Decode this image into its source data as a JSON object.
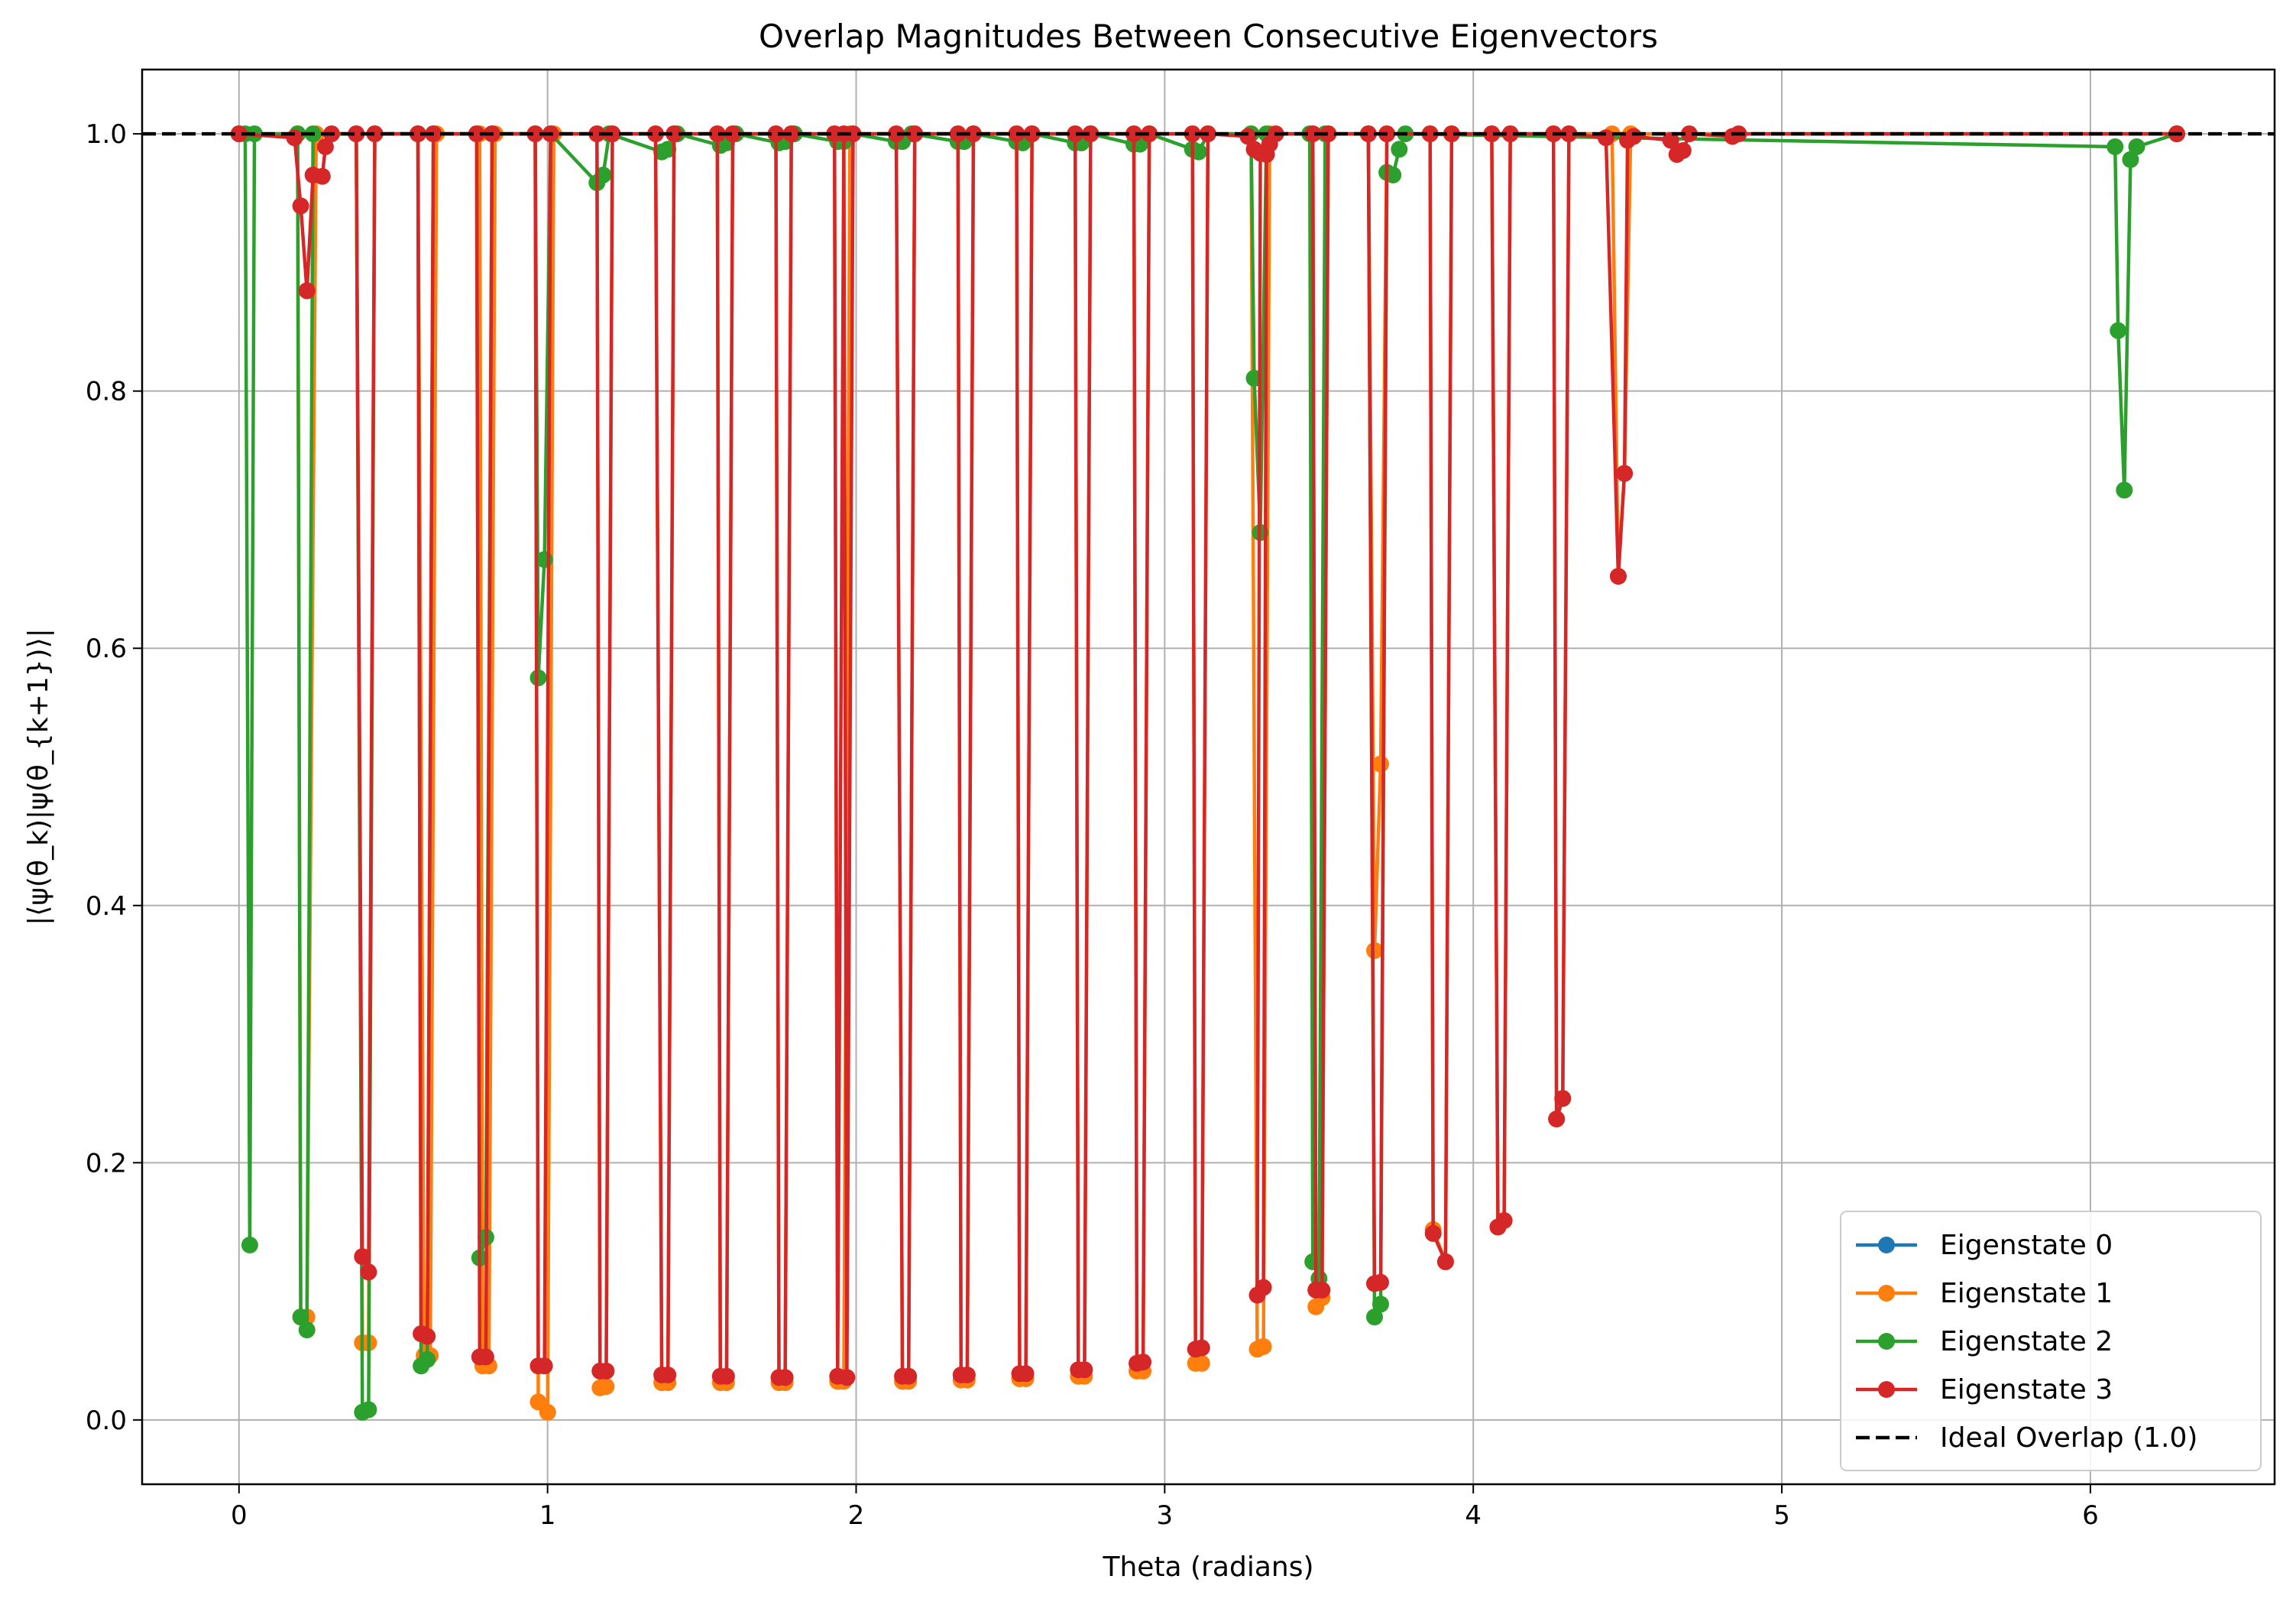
{
  "chart_data": {
    "type": "line",
    "title": "Overlap Magnitudes Between Consecutive Eigenvectors",
    "xlabel": "Theta (radians)",
    "ylabel": "|⟨ψ(θ_k)|ψ(θ_{k+1})⟩|",
    "xlim": [
      -0.314,
      6.597
    ],
    "ylim": [
      -0.05,
      1.05
    ],
    "xticks": [
      0,
      1,
      2,
      3,
      4,
      5,
      6
    ],
    "yticks": [
      0.0,
      0.2,
      0.4,
      0.6,
      0.8,
      1.0
    ],
    "ytick_labels": [
      "0.0",
      "0.2",
      "0.4",
      "0.6",
      "0.8",
      "1.0"
    ],
    "grid": true,
    "legend_position": "lower right",
    "colors": {
      "Eigenstate 0": "#1f77b4",
      "Eigenstate 1": "#ff7f0e",
      "Eigenstate 2": "#2ca02c",
      "Eigenstate 3": "#d62728",
      "Ideal Overlap (1.0)": "#000000"
    },
    "reference_line": {
      "name": "Ideal Overlap (1.0)",
      "y": 1.0,
      "style": "dashed"
    },
    "series": [
      {
        "name": "Eigenstate 0",
        "points": [
          [
            0,
            1
          ],
          [
            6.28,
            1
          ]
        ]
      },
      {
        "name": "Eigenstate 1",
        "points": [
          [
            0,
            1
          ],
          [
            0.19,
            1
          ],
          [
            0.2,
            0.08
          ],
          [
            0.22,
            0.08
          ],
          [
            0.25,
            1
          ],
          [
            0.38,
            1
          ],
          [
            0.4,
            0.06
          ],
          [
            0.42,
            0.06
          ],
          [
            0.44,
            1
          ],
          [
            0.58,
            1
          ],
          [
            0.6,
            0.05
          ],
          [
            0.62,
            0.05
          ],
          [
            0.64,
            1
          ],
          [
            0.78,
            1
          ],
          [
            0.79,
            0.042
          ],
          [
            0.81,
            0.042
          ],
          [
            0.83,
            1
          ],
          [
            0.96,
            1
          ],
          [
            0.97,
            0.014
          ],
          [
            1.0,
            0.006
          ],
          [
            1.02,
            1
          ],
          [
            1.16,
            1
          ],
          [
            1.17,
            0.025
          ],
          [
            1.19,
            0.026
          ],
          [
            1.21,
            1
          ],
          [
            1.35,
            1
          ],
          [
            1.37,
            0.029
          ],
          [
            1.39,
            0.029
          ],
          [
            1.41,
            1
          ],
          [
            1.55,
            1
          ],
          [
            1.56,
            0.029
          ],
          [
            1.58,
            0.029
          ],
          [
            1.6,
            1
          ],
          [
            1.74,
            1
          ],
          [
            1.75,
            0.029
          ],
          [
            1.77,
            0.029
          ],
          [
            1.79,
            1
          ],
          [
            1.93,
            1
          ],
          [
            1.94,
            0.03
          ],
          [
            1.96,
            0.03
          ],
          [
            1.98,
            1
          ],
          [
            2.13,
            1
          ],
          [
            2.15,
            0.03
          ],
          [
            2.17,
            0.03
          ],
          [
            2.19,
            1
          ],
          [
            2.33,
            1
          ],
          [
            2.34,
            0.031
          ],
          [
            2.36,
            0.031
          ],
          [
            2.38,
            1
          ],
          [
            2.52,
            1
          ],
          [
            2.53,
            0.032
          ],
          [
            2.55,
            0.032
          ],
          [
            2.57,
            1
          ],
          [
            2.71,
            1
          ],
          [
            2.72,
            0.034
          ],
          [
            2.74,
            0.034
          ],
          [
            2.76,
            1
          ],
          [
            2.9,
            1
          ],
          [
            2.91,
            0.038
          ],
          [
            2.93,
            0.038
          ],
          [
            2.95,
            1
          ],
          [
            3.09,
            1
          ],
          [
            3.1,
            0.044
          ],
          [
            3.12,
            0.044
          ],
          [
            3.14,
            1
          ],
          [
            3.28,
            1
          ],
          [
            3.3,
            0.055
          ],
          [
            3.32,
            0.057
          ],
          [
            3.34,
            1
          ],
          [
            3.48,
            1
          ],
          [
            3.49,
            0.088
          ],
          [
            3.51,
            0.095
          ],
          [
            3.53,
            1
          ],
          [
            3.66,
            1
          ],
          [
            3.68,
            0.365
          ],
          [
            3.7,
            0.51
          ],
          [
            3.72,
            1
          ],
          [
            3.86,
            1
          ],
          [
            3.87,
            0.148
          ],
          [
            3.91,
            0.123
          ],
          [
            3.93,
            1
          ],
          [
            4.06,
            1
          ],
          [
            4.08,
            0.15
          ],
          [
            4.1,
            0.155
          ],
          [
            4.12,
            1
          ],
          [
            4.26,
            1
          ],
          [
            4.27,
            0.234
          ],
          [
            4.29,
            0.25
          ],
          [
            4.31,
            1
          ],
          [
            4.45,
            1
          ],
          [
            4.47,
            0.656
          ],
          [
            4.49,
            0.736
          ],
          [
            4.51,
            1
          ],
          [
            6.28,
            1
          ]
        ]
      },
      {
        "name": "Eigenstate 2",
        "points": [
          [
            0,
            1
          ],
          [
            0.02,
            1
          ],
          [
            0.035,
            0.136
          ],
          [
            0.05,
            1
          ],
          [
            0.19,
            1
          ],
          [
            0.2,
            0.08
          ],
          [
            0.22,
            0.07
          ],
          [
            0.24,
            1
          ],
          [
            0.38,
            1
          ],
          [
            0.4,
            0.006
          ],
          [
            0.42,
            0.008
          ],
          [
            0.44,
            1
          ],
          [
            0.58,
            1
          ],
          [
            0.59,
            0.042
          ],
          [
            0.61,
            0.047
          ],
          [
            0.63,
            1
          ],
          [
            0.77,
            1
          ],
          [
            0.78,
            0.126
          ],
          [
            0.8,
            0.142
          ],
          [
            0.82,
            1
          ],
          [
            0.96,
            1
          ],
          [
            0.97,
            0.577
          ],
          [
            0.99,
            0.669
          ],
          [
            1.01,
            1
          ],
          [
            1.16,
            0.962
          ],
          [
            1.18,
            0.968
          ],
          [
            1.2,
            1
          ],
          [
            1.37,
            0.986
          ],
          [
            1.39,
            0.988
          ],
          [
            1.42,
            1
          ],
          [
            1.56,
            0.991
          ],
          [
            1.58,
            0.993
          ],
          [
            1.61,
            1
          ],
          [
            1.75,
            0.993
          ],
          [
            1.77,
            0.994
          ],
          [
            1.8,
            1
          ],
          [
            1.94,
            0.994
          ],
          [
            1.96,
            0.994
          ],
          [
            1.99,
            1
          ],
          [
            2.13,
            0.994
          ],
          [
            2.15,
            0.994
          ],
          [
            2.18,
            1
          ],
          [
            2.33,
            0.994
          ],
          [
            2.35,
            0.994
          ],
          [
            2.38,
            1
          ],
          [
            2.52,
            0.994
          ],
          [
            2.54,
            0.993
          ],
          [
            2.57,
            1
          ],
          [
            2.71,
            0.993
          ],
          [
            2.73,
            0.993
          ],
          [
            2.76,
            1
          ],
          [
            2.9,
            0.992
          ],
          [
            2.92,
            0.992
          ],
          [
            2.95,
            1
          ],
          [
            3.09,
            0.988
          ],
          [
            3.11,
            0.986
          ],
          [
            3.14,
            1
          ],
          [
            3.28,
            1
          ],
          [
            3.29,
            0.81
          ],
          [
            3.31,
            0.69
          ],
          [
            3.33,
            1
          ],
          [
            3.47,
            1
          ],
          [
            3.48,
            0.123
          ],
          [
            3.5,
            0.11
          ],
          [
            3.52,
            1
          ],
          [
            3.66,
            1
          ],
          [
            3.68,
            0.08
          ],
          [
            3.7,
            0.09
          ],
          [
            3.72,
            0.97
          ],
          [
            3.74,
            0.968
          ],
          [
            3.76,
            0.988
          ],
          [
            3.78,
            1
          ],
          [
            6.08,
            0.99
          ],
          [
            6.09,
            0.847
          ],
          [
            6.11,
            0.723
          ],
          [
            6.13,
            0.98
          ],
          [
            6.15,
            0.99
          ],
          [
            6.28,
            1
          ]
        ]
      },
      {
        "name": "Eigenstate 3",
        "points": [
          [
            0,
            1
          ],
          [
            0.18,
            0.997
          ],
          [
            0.2,
            0.944
          ],
          [
            0.22,
            0.878
          ],
          [
            0.24,
            0.968
          ],
          [
            0.27,
            0.967
          ],
          [
            0.28,
            0.99
          ],
          [
            0.3,
            1
          ],
          [
            0.38,
            1
          ],
          [
            0.4,
            0.127
          ],
          [
            0.42,
            0.115
          ],
          [
            0.44,
            1
          ],
          [
            0.58,
            1
          ],
          [
            0.59,
            0.067
          ],
          [
            0.61,
            0.065
          ],
          [
            0.63,
            1
          ],
          [
            0.77,
            1
          ],
          [
            0.78,
            0.049
          ],
          [
            0.8,
            0.049
          ],
          [
            0.82,
            1
          ],
          [
            0.96,
            1
          ],
          [
            0.97,
            0.042
          ],
          [
            0.99,
            0.042
          ],
          [
            1.01,
            1
          ],
          [
            1.16,
            1
          ],
          [
            1.17,
            0.038
          ],
          [
            1.19,
            0.038
          ],
          [
            1.21,
            1
          ],
          [
            1.35,
            1
          ],
          [
            1.37,
            0.035
          ],
          [
            1.39,
            0.035
          ],
          [
            1.41,
            1
          ],
          [
            1.55,
            1
          ],
          [
            1.56,
            0.034
          ],
          [
            1.58,
            0.034
          ],
          [
            1.6,
            1
          ],
          [
            1.74,
            1
          ],
          [
            1.75,
            0.033
          ],
          [
            1.77,
            0.033
          ],
          [
            1.79,
            1
          ],
          [
            1.93,
            1
          ],
          [
            1.94,
            0.034
          ],
          [
            1.96,
            1
          ],
          [
            1.97,
            0.033
          ],
          [
            1.99,
            1
          ],
          [
            2.13,
            1
          ],
          [
            2.15,
            0.034
          ],
          [
            2.17,
            0.034
          ],
          [
            2.19,
            1
          ],
          [
            2.33,
            1
          ],
          [
            2.34,
            0.035
          ],
          [
            2.36,
            0.035
          ],
          [
            2.38,
            1
          ],
          [
            2.52,
            1
          ],
          [
            2.53,
            0.036
          ],
          [
            2.55,
            0.036
          ],
          [
            2.57,
            1
          ],
          [
            2.71,
            1
          ],
          [
            2.72,
            0.039
          ],
          [
            2.74,
            0.039
          ],
          [
            2.76,
            1
          ],
          [
            2.9,
            1
          ],
          [
            2.91,
            0.044
          ],
          [
            2.93,
            0.045
          ],
          [
            2.95,
            1
          ],
          [
            3.09,
            1
          ],
          [
            3.1,
            0.055
          ],
          [
            3.12,
            0.056
          ],
          [
            3.14,
            1
          ],
          [
            3.27,
            0.998
          ],
          [
            3.29,
            0.988
          ],
          [
            3.31,
            0.985
          ],
          [
            3.3,
            0.097
          ],
          [
            3.32,
            0.103
          ],
          [
            3.33,
            0.984
          ],
          [
            3.34,
            0.992
          ],
          [
            3.36,
            1
          ],
          [
            3.48,
            1
          ],
          [
            3.49,
            0.101
          ],
          [
            3.51,
            0.101
          ],
          [
            3.53,
            1
          ],
          [
            3.66,
            1
          ],
          [
            3.68,
            0.106
          ],
          [
            3.7,
            0.107
          ],
          [
            3.72,
            1
          ],
          [
            3.86,
            1
          ],
          [
            3.87,
            0.145
          ],
          [
            3.91,
            0.123
          ],
          [
            3.93,
            1
          ],
          [
            4.06,
            1
          ],
          [
            4.08,
            0.15
          ],
          [
            4.1,
            0.155
          ],
          [
            4.12,
            1
          ],
          [
            4.26,
            1
          ],
          [
            4.27,
            0.234
          ],
          [
            4.29,
            0.25
          ],
          [
            4.31,
            1
          ],
          [
            4.43,
            0.997
          ],
          [
            4.47,
            0.656
          ],
          [
            4.49,
            0.736
          ],
          [
            4.5,
            0.995
          ],
          [
            4.52,
            0.998
          ],
          [
            4.64,
            0.995
          ],
          [
            4.66,
            0.984
          ],
          [
            4.68,
            0.987
          ],
          [
            4.7,
            1
          ],
          [
            4.84,
            0.998
          ],
          [
            4.86,
            1
          ],
          [
            6.28,
            1
          ]
        ]
      }
    ]
  }
}
